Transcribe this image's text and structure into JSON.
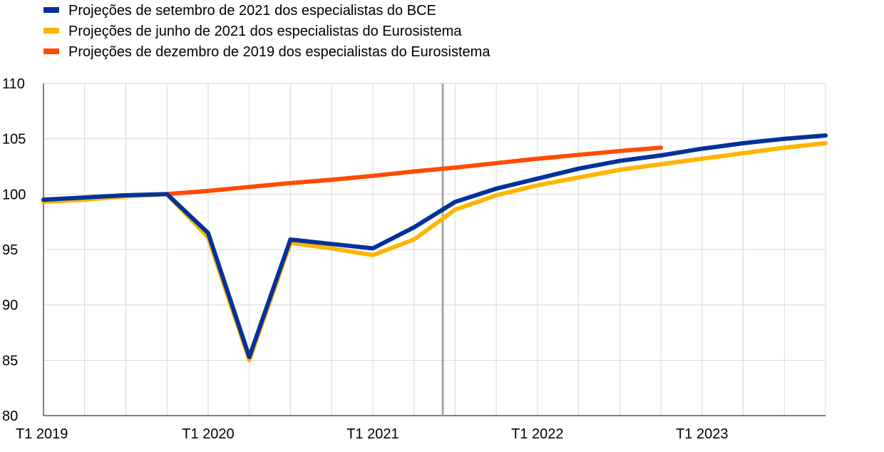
{
  "chart_data": {
    "type": "line",
    "ylim": [
      80,
      110
    ],
    "yticks": [
      "80",
      "85",
      "90",
      "95",
      "100",
      "105",
      "110"
    ],
    "xlim": [
      0,
      19
    ],
    "xtick_labels": [
      {
        "x": 0,
        "label": "T1 2019"
      },
      {
        "x": 4,
        "label": "T1 2020"
      },
      {
        "x": 8,
        "label": "T1 2021"
      },
      {
        "x": 12,
        "label": "T1 2022"
      },
      {
        "x": 16,
        "label": "T1 2023"
      }
    ],
    "vline_x": 9.7,
    "grid": true,
    "legend_position": "top-left",
    "series": [
      {
        "name": "Projeções de dezembro de 2019 dos especialistas do Eurosistema",
        "color": "#ff4b00",
        "x": [
          3,
          4,
          5,
          6,
          7,
          8,
          9,
          10,
          11,
          12,
          13,
          14,
          15
        ],
        "values": [
          100.0,
          100.3,
          100.65,
          101.0,
          101.3,
          101.65,
          102.05,
          102.4,
          102.8,
          103.2,
          103.55,
          103.9,
          104.2
        ]
      },
      {
        "name": "Projeções de junho de 2021 dos especialistas do Eurosistema",
        "color": "#ffb400",
        "x": [
          0,
          1,
          2,
          3,
          4,
          5,
          6,
          7,
          8,
          9,
          10,
          11,
          12,
          13,
          14,
          15,
          16,
          17,
          18,
          19
        ],
        "values": [
          99.3,
          99.5,
          99.8,
          100.0,
          96.1,
          85.0,
          95.6,
          95.1,
          94.5,
          95.9,
          98.6,
          99.9,
          100.8,
          101.5,
          102.2,
          102.7,
          103.2,
          103.7,
          104.2,
          104.6
        ]
      },
      {
        "name": "Projeções de setembro de 2021 dos especialistas do BCE",
        "color": "#003299",
        "x": [
          0,
          1,
          2,
          3,
          4,
          5,
          6,
          7,
          8,
          9,
          10,
          11,
          12,
          13,
          14,
          15,
          16,
          17,
          18,
          19
        ],
        "values": [
          99.5,
          99.7,
          99.9,
          100.0,
          96.5,
          85.3,
          95.9,
          95.5,
          95.1,
          97.0,
          99.3,
          100.5,
          101.4,
          102.3,
          103.0,
          103.5,
          104.1,
          104.6,
          105.0,
          105.3
        ]
      }
    ],
    "legend_order": [
      2,
      1,
      0
    ]
  }
}
